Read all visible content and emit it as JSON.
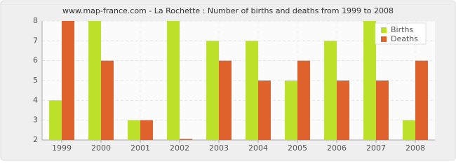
{
  "chart_data": {
    "type": "bar",
    "title": "www.map-france.com - La Rochette : Number of births and deaths from 1999 to 2008",
    "categories": [
      "1999",
      "2000",
      "2001",
      "2002",
      "2003",
      "2004",
      "2005",
      "2006",
      "2007",
      "2008"
    ],
    "series": [
      {
        "name": "Births",
        "color": "#bde12a",
        "values": [
          4,
          8,
          3,
          8,
          7,
          7,
          5,
          7,
          8,
          3
        ]
      },
      {
        "name": "Deaths",
        "color": "#e0632e",
        "values": [
          8,
          6,
          3,
          2,
          6,
          5,
          6,
          5,
          5,
          6
        ]
      }
    ],
    "ylim": [
      2,
      8
    ],
    "yticks": [
      2,
      3,
      4,
      5,
      6,
      7,
      8
    ],
    "grid": true,
    "legend": "top-right"
  }
}
